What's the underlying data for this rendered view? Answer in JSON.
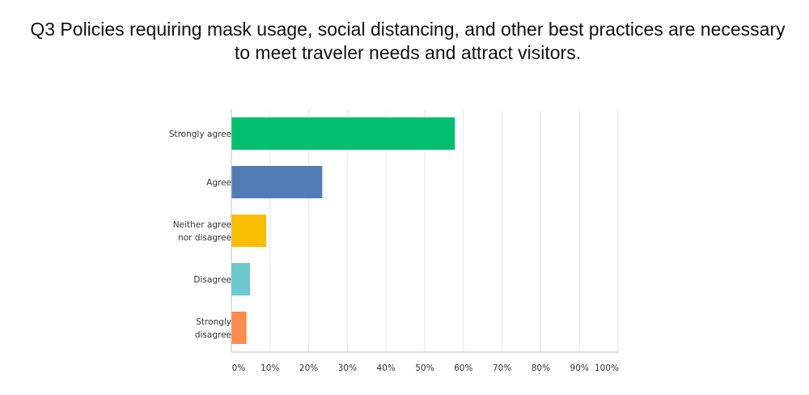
{
  "chart_data": {
    "type": "bar",
    "orientation": "horizontal",
    "title_lines": [
      "Q3 Policies requiring mask usage, social distancing, and other best practices are necessary",
      "to meet traveler needs and attract visitors."
    ],
    "categories": [
      [
        "Strongly agree"
      ],
      [
        "Agree"
      ],
      [
        "Neither agree",
        "nor disagree"
      ],
      [
        "Disagree"
      ],
      [
        "Strongly",
        "disagree"
      ]
    ],
    "values": [
      57.8,
      23.5,
      9.0,
      4.8,
      3.9
    ],
    "colors": [
      "#00bf6f",
      "#507cb6",
      "#f9be00",
      "#6bc8cd",
      "#ff8b4f"
    ],
    "xlim": [
      0,
      100
    ],
    "x_ticks": [
      {
        "value": 0,
        "label": "0%"
      },
      {
        "value": 10,
        "label": "10%"
      },
      {
        "value": 20,
        "label": "20%"
      },
      {
        "value": 30,
        "label": "30%"
      },
      {
        "value": 40,
        "label": "40%"
      },
      {
        "value": 50,
        "label": "50%"
      },
      {
        "value": 60,
        "label": "60%"
      },
      {
        "value": 70,
        "label": "70%"
      },
      {
        "value": 80,
        "label": "80%"
      },
      {
        "value": 90,
        "label": "90%"
      },
      {
        "value": 100,
        "label": "100%"
      }
    ],
    "grid": true,
    "legend": "none"
  }
}
